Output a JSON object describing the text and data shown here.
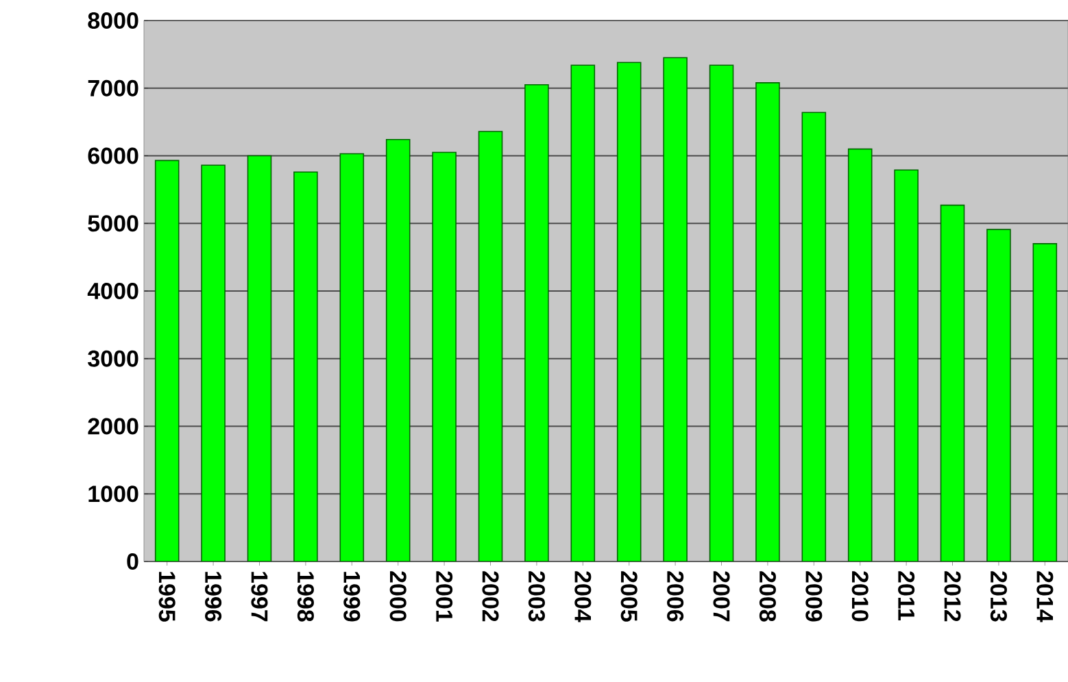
{
  "chart_data": {
    "type": "bar",
    "categories": [
      "1995",
      "1996",
      "1997",
      "1998",
      "1999",
      "2000",
      "2001",
      "2002",
      "2003",
      "2004",
      "2005",
      "2006",
      "2007",
      "2008",
      "2009",
      "2010",
      "2011",
      "2012",
      "2013",
      "2014"
    ],
    "values": [
      5930,
      5860,
      6000,
      5760,
      6030,
      6240,
      6050,
      6360,
      7050,
      7340,
      7380,
      7450,
      7340,
      7080,
      6640,
      6100,
      5790,
      5270,
      4910,
      4700
    ],
    "color": "#00ff00",
    "ylim": [
      0,
      8000
    ],
    "yticks": [
      0,
      1000,
      2000,
      3000,
      4000,
      5000,
      6000,
      7000,
      8000
    ],
    "grid": "y"
  }
}
